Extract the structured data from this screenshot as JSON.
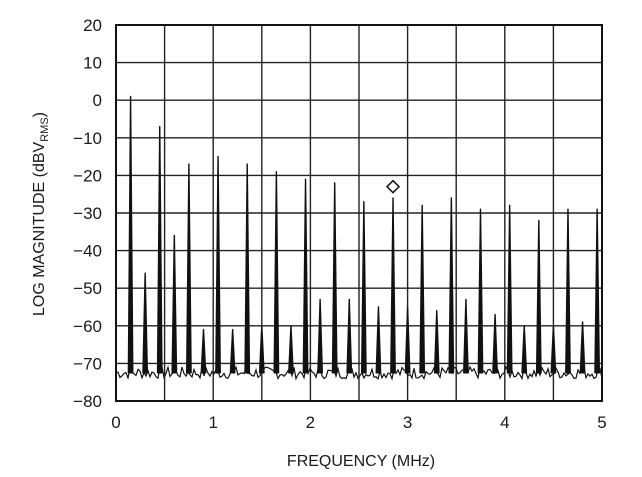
{
  "chart_data": {
    "type": "line",
    "title": "",
    "xlabel": "FREQUENCY (MHz)",
    "ylabel_main": "LOG MAGNITUDE (dBV",
    "ylabel_sub": "RMS",
    "ylabel_close": ")",
    "xlim": [
      0,
      5
    ],
    "ylim": [
      -80,
      20
    ],
    "x_ticks": [
      0,
      1,
      2,
      3,
      4,
      5
    ],
    "y_ticks": [
      20,
      10,
      0,
      -10,
      -20,
      -30,
      -40,
      -50,
      -60,
      -70,
      -80
    ],
    "x_minor_step": 0.5,
    "grid": true,
    "legend": "none",
    "noise_floor_dBV": -72.5,
    "series": [
      {
        "peaks": [
          {
            "x": 0.15,
            "y": 1
          },
          {
            "x": 0.3,
            "y": -46
          },
          {
            "x": 0.45,
            "y": -7
          },
          {
            "x": 0.6,
            "y": -36
          },
          {
            "x": 0.75,
            "y": -17
          },
          {
            "x": 0.9,
            "y": -61
          },
          {
            "x": 1.05,
            "y": -15
          },
          {
            "x": 1.2,
            "y": -61
          },
          {
            "x": 1.35,
            "y": -17
          },
          {
            "x": 1.5,
            "y": -60
          },
          {
            "x": 1.65,
            "y": -19
          },
          {
            "x": 1.8,
            "y": -60
          },
          {
            "x": 1.95,
            "y": -21
          },
          {
            "x": 2.1,
            "y": -53
          },
          {
            "x": 2.25,
            "y": -22
          },
          {
            "x": 2.4,
            "y": -53
          },
          {
            "x": 2.55,
            "y": -27
          },
          {
            "x": 2.7,
            "y": -55
          },
          {
            "x": 2.85,
            "y": -26
          },
          {
            "x": 3.0,
            "y": -55
          },
          {
            "x": 3.15,
            "y": -28
          },
          {
            "x": 3.3,
            "y": -56
          },
          {
            "x": 3.45,
            "y": -26
          },
          {
            "x": 3.6,
            "y": -53
          },
          {
            "x": 3.75,
            "y": -29
          },
          {
            "x": 3.9,
            "y": -57
          },
          {
            "x": 4.05,
            "y": -28
          },
          {
            "x": 4.2,
            "y": -60
          },
          {
            "x": 4.35,
            "y": -32
          },
          {
            "x": 4.5,
            "y": -60
          },
          {
            "x": 4.65,
            "y": -29
          },
          {
            "x": 4.8,
            "y": -59
          },
          {
            "x": 4.95,
            "y": -29
          }
        ]
      }
    ],
    "marker": {
      "x": 2.85,
      "y": -23,
      "shape": "diamond"
    }
  }
}
